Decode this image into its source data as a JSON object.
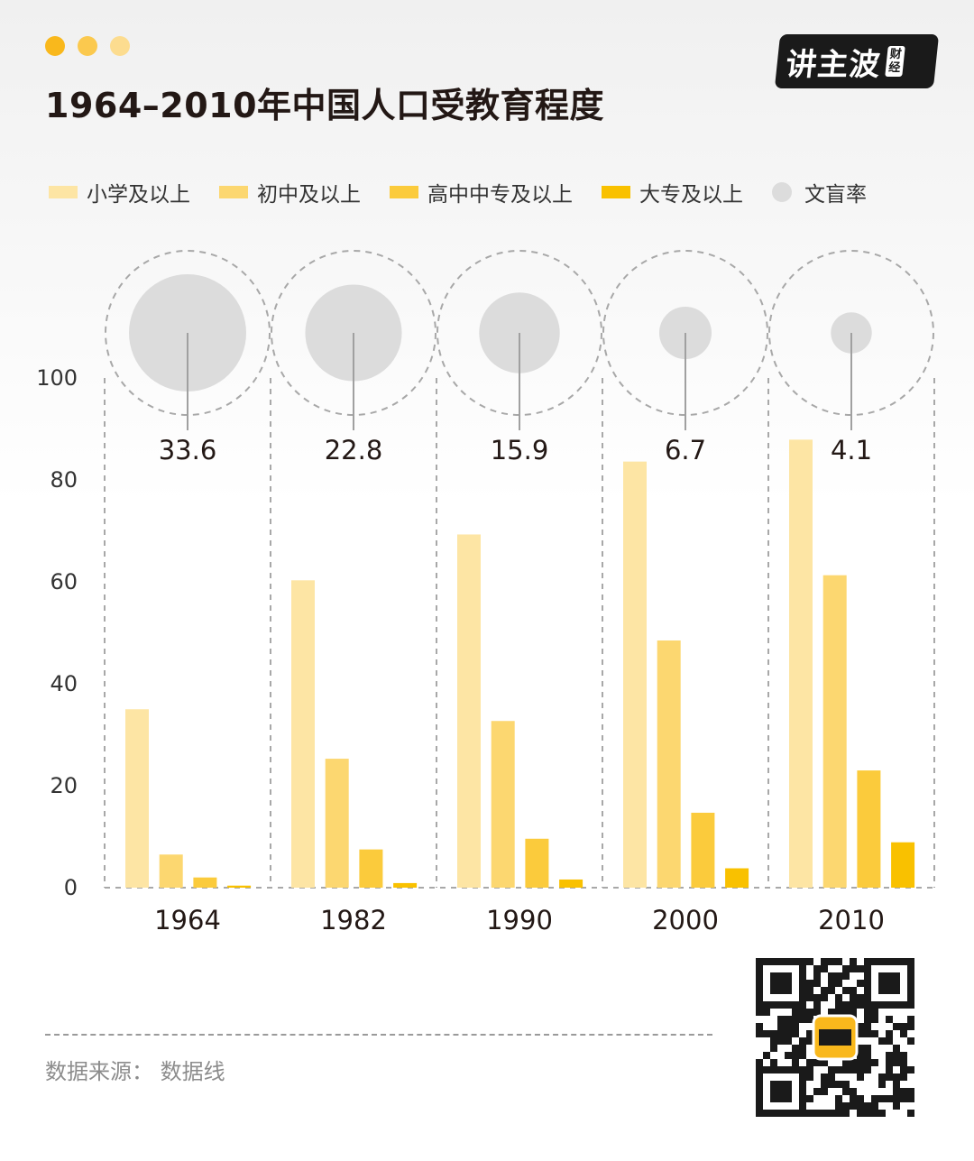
{
  "header": {
    "title": "1964–2010年中国人口受教育程度",
    "dots": [
      "#f9b81c",
      "#fbc94e",
      "#fcdc8f"
    ],
    "logo_main": "讲主波",
    "logo_sub": [
      "财",
      "经"
    ]
  },
  "legend": [
    {
      "label": "小学及以上",
      "color": "#fde5a4",
      "shape": "bar"
    },
    {
      "label": "初中及以上",
      "color": "#fcd770",
      "shape": "bar"
    },
    {
      "label": "高中中专及以上",
      "color": "#fbcb3c",
      "shape": "bar"
    },
    {
      "label": "大专及以上",
      "color": "#f9c100",
      "shape": "bar"
    },
    {
      "label": "文盲率",
      "color": "#dcdcdc",
      "shape": "circle"
    }
  ],
  "chart_data": {
    "type": "bar",
    "categories": [
      "1964",
      "1982",
      "1990",
      "2000",
      "2010"
    ],
    "series": [
      {
        "name": "小学及以上",
        "values": [
          35,
          60.3,
          69.3,
          83.6,
          87.9
        ],
        "color": "#fde5a4"
      },
      {
        "name": "初中及以上",
        "values": [
          6.5,
          25.3,
          32.7,
          48.5,
          61.3
        ],
        "color": "#fcd770"
      },
      {
        "name": "高中中专及以上",
        "values": [
          2,
          7.5,
          9.6,
          14.7,
          23
        ],
        "color": "#fbcb3c"
      },
      {
        "name": "大专及以上",
        "values": [
          0.4,
          0.9,
          1.6,
          3.8,
          8.9
        ],
        "color": "#f9c100"
      }
    ],
    "illiteracy": {
      "name": "文盲率",
      "values": [
        33.6,
        22.8,
        15.9,
        6.7,
        4.1
      ],
      "labels": [
        "33.6",
        "22.8",
        "15.9",
        "6.7",
        "4.1"
      ],
      "color": "#dcdcdc"
    },
    "y_ticks": [
      "0",
      "20",
      "40",
      "60",
      "80",
      "100"
    ],
    "ylim": [
      0,
      100
    ],
    "grid": false
  },
  "footer": {
    "source": "数据来源： 数据线"
  }
}
